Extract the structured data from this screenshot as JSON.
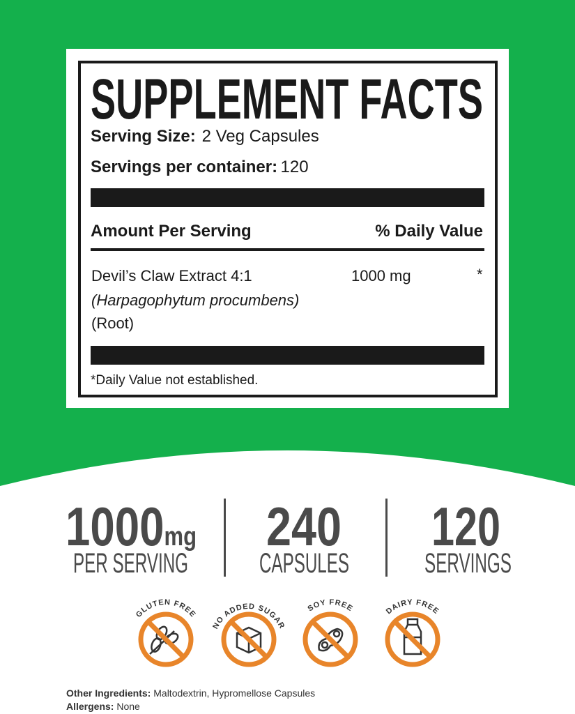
{
  "colors": {
    "background_green": "#14b04c",
    "badge_orange": "#e8852a",
    "text_dark": "#1a1a1a",
    "stat_gray": "#4a4a4a"
  },
  "label": {
    "title": "SUPPLEMENT FACTS",
    "serving_size_label": "Serving Size:",
    "serving_size_value": "2 Veg Capsules",
    "servings_label": "Servings per container:",
    "servings_value": "120",
    "amount_header": "Amount Per Serving",
    "dv_header": "% Daily Value",
    "ingredient": {
      "name": "Devil’s Claw Extract 4:1",
      "latin": "(Harpagophytum procumbens)",
      "part": "(Root)",
      "amount": "1000 mg",
      "dv": "*"
    },
    "footnote": "*Daily Value not established."
  },
  "stats": [
    {
      "number": "1000",
      "unit": "mg",
      "label": "PER SERVING"
    },
    {
      "number": "240",
      "label": "CAPSULES"
    },
    {
      "number": "120",
      "label": "SERVINGS"
    }
  ],
  "badges": [
    {
      "text": "GLUTEN FREE",
      "icon": "wheat-icon"
    },
    {
      "text": "NO ADDED SUGAR",
      "icon": "sugar-cube-icon"
    },
    {
      "text": "SOY FREE",
      "icon": "soybean-icon"
    },
    {
      "text": "DAIRY FREE",
      "icon": "milk-bottle-icon"
    }
  ],
  "footer": {
    "other_label": "Other Ingredients:",
    "other_value": "Maltodextrin, Hypromellose Capsules",
    "allergens_label": "Allergens:",
    "allergens_value": "None"
  }
}
